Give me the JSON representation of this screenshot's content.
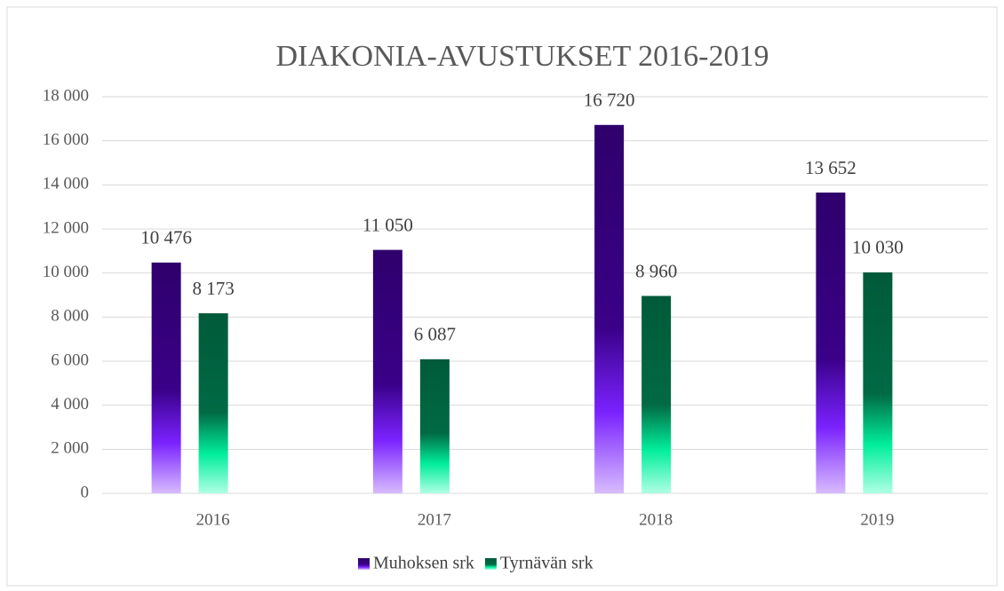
{
  "chart_data": {
    "type": "bar",
    "title": "DIAKONIA-AVUSTUKSET 2016-2019",
    "categories": [
      "2016",
      "2017",
      "2018",
      "2019"
    ],
    "series": [
      {
        "name": "Muhoksen srk",
        "color": "#3a0088",
        "gradient": [
          "#2f006c",
          "#3a0088",
          "#7a22ff",
          "#d8bcff"
        ],
        "values": [
          10476,
          11050,
          16720,
          13652
        ],
        "value_labels": [
          "10 476",
          "11 050",
          "16 720",
          "13 652"
        ]
      },
      {
        "name": "Tyrnävän srk",
        "color": "#006a45",
        "gradient": [
          "#005a3a",
          "#006a45",
          "#00ee9c",
          "#b0ffe4"
        ],
        "values": [
          8173,
          6087,
          8960,
          10030
        ],
        "value_labels": [
          "8 173",
          "6 087",
          "8 960",
          "10 030"
        ]
      }
    ],
    "ylim": [
      0,
      18000
    ],
    "yticks": [
      0,
      {
        "value": 2000,
        "label": "2 000"
      },
      {
        "value": 4000,
        "label": "4 000"
      },
      {
        "value": 6000,
        "label": "6 000"
      },
      {
        "value": 8000,
        "label": "8 000"
      },
      {
        "value": 10000,
        "label": "10 000"
      },
      {
        "value": 12000,
        "label": "12 000"
      },
      {
        "value": 14000,
        "label": "14 000"
      },
      {
        "value": 16000,
        "label": "16 000"
      },
      {
        "value": 18000,
        "label": "18 000"
      }
    ],
    "grid": true,
    "legend": "bottom"
  }
}
